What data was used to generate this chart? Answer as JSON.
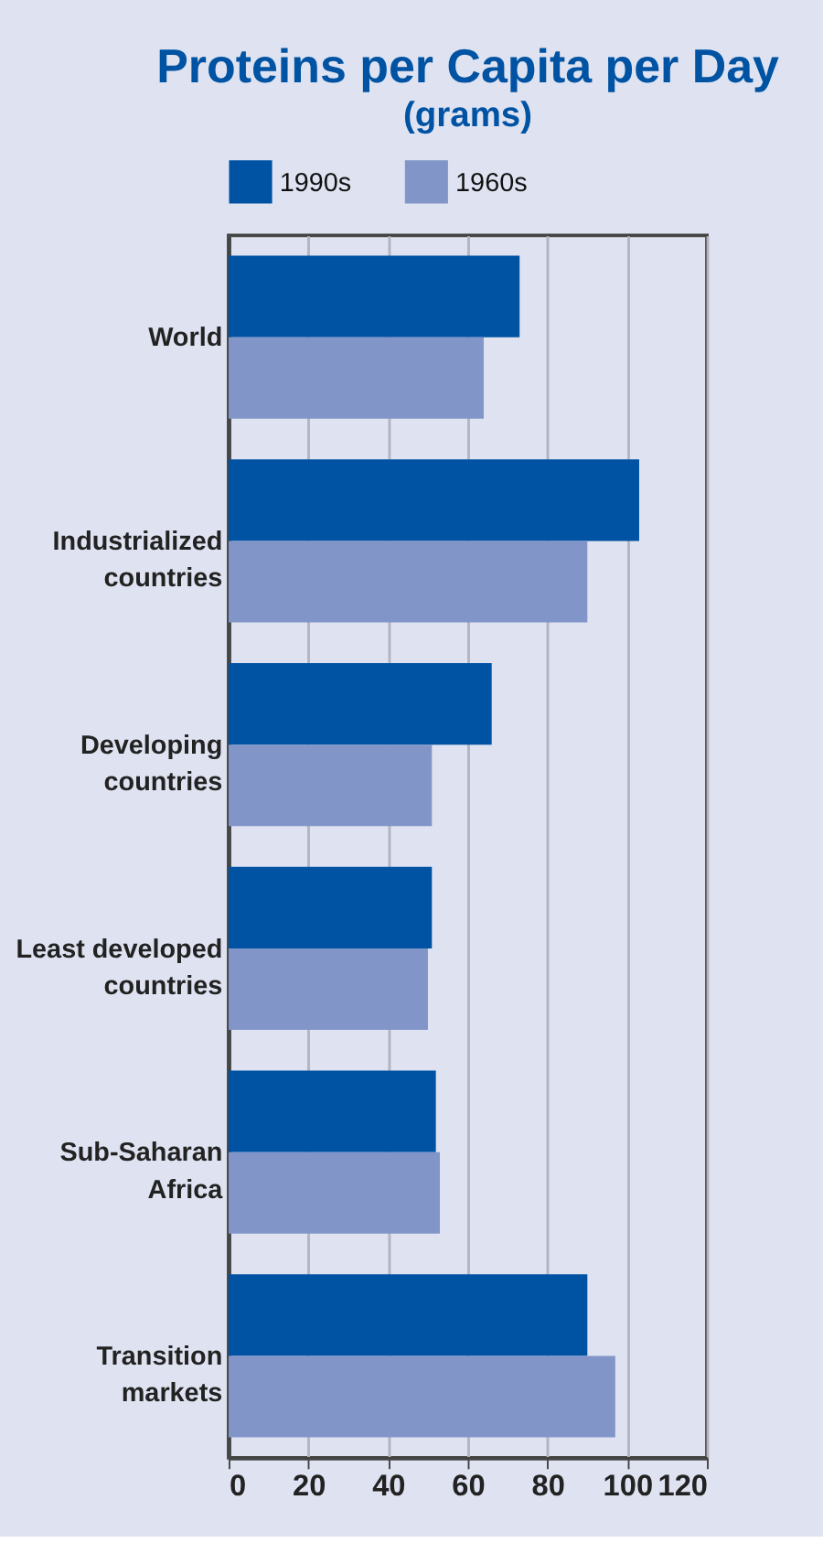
{
  "chart_data": {
    "type": "bar",
    "orientation": "horizontal",
    "title": "Proteins per Capita per Day",
    "subtitle": "(grams)",
    "categories": [
      "World",
      "Industrialized countries",
      "Developing countries",
      "Least developed countries",
      "Sub-Saharan Africa",
      "Transition markets"
    ],
    "series": [
      {
        "name": "1990s",
        "color": "#0053a3",
        "values": [
          73,
          103,
          66,
          51,
          52,
          90
        ]
      },
      {
        "name": "1960s",
        "color": "#8195c8",
        "values": [
          64,
          90,
          51,
          50,
          53,
          97
        ]
      }
    ],
    "xlim": [
      0,
      120
    ],
    "xticks": [
      0,
      20,
      40,
      60,
      80,
      100,
      120
    ],
    "grid": "x",
    "legend": "top"
  }
}
